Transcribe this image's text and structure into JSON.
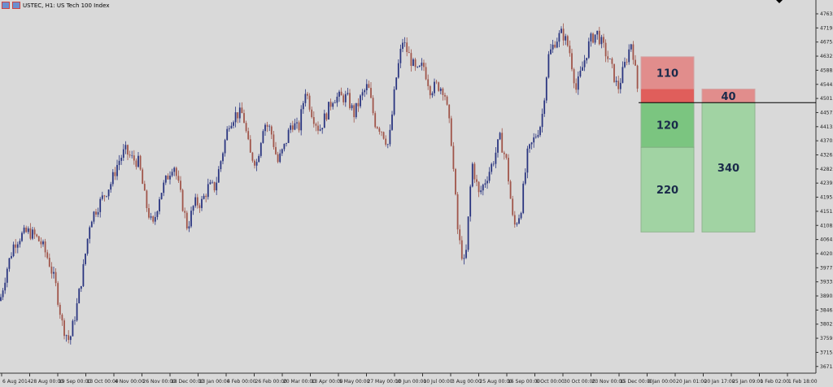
{
  "window": {
    "title": "USTEC, H1: US Tech 100 Index"
  },
  "chart_data": {
    "type": "candlestick",
    "symbol": "USTEC",
    "timeframe": "H1",
    "description": "US Tech 100 Index",
    "colors": {
      "bull": "#2a3580",
      "bear": "#a0554a",
      "background": "#d9d9d9",
      "line": "#000000"
    },
    "y_ticks": [
      "4763.00",
      "4719.35",
      "4675.70",
      "4632.05",
      "4588.40",
      "4544.75",
      "4501.10",
      "4457.45",
      "4413.80",
      "4370.15",
      "4326.50",
      "4282.85",
      "4239.20",
      "4195.55",
      "4151.90",
      "4108.25",
      "4064.60",
      "4020.95",
      "3977.30",
      "3933.65",
      "3890.00",
      "3846.35",
      "3802.70",
      "3759.05",
      "3715.40",
      "3671.75"
    ],
    "ylim": [
      3660,
      4790
    ],
    "x_ticks": [
      "6 Aug 2014",
      "28 Aug 00:00",
      "19 Sep 00:00",
      "13 Oct 00:00",
      "4 Nov 00:00",
      "26 Nov 00:00",
      "18 Dec 00:00",
      "13 Jan 00:00",
      "4 Feb 00:00",
      "26 Feb 00:00",
      "20 Mar 00:00",
      "13 Apr 00:00",
      "5 May 00:00",
      "27 May 00:00",
      "10 Jun 00:00",
      "10 Jul 00:00",
      "3 Aug 00:00",
      "25 Aug 00:00",
      "16 Sep 00:00",
      "8 Oct 00:00",
      "30 Oct 00:00",
      "23 Nov 00:00",
      "15 Dec 00:00",
      "8 Jan 00:00",
      "20 Jan 01:00",
      "20 Jan 17:00",
      "25 Jan 09:00",
      "1 Feb 02:00",
      "1 Feb 18:00"
    ],
    "close_path": [
      3875,
      3975,
      4051,
      4076,
      4089,
      4076,
      4051,
      4001,
      3925,
      3799,
      3749,
      3850,
      3975,
      4126,
      4164,
      4202,
      4240,
      4303,
      4340,
      4315,
      4303,
      4177,
      4101,
      4202,
      4252,
      4303,
      4202,
      4101,
      4177,
      4177,
      4227,
      4227,
      4328,
      4428,
      4453,
      4453,
      4328,
      4303,
      4428,
      4403,
      4303,
      4353,
      4428,
      4403,
      4529,
      4453,
      4403,
      4453,
      4504,
      4504,
      4504,
      4453,
      4504,
      4542,
      4428,
      4403,
      4353,
      4554,
      4680,
      4630,
      4579,
      4604,
      4529,
      4542,
      4529,
      4378,
      4076,
      3975,
      4303,
      4202,
      4252,
      4303,
      4378,
      4303,
      4101,
      4152,
      4328,
      4378,
      4428,
      4630,
      4680,
      4705,
      4655,
      4529,
      4604,
      4680,
      4705,
      4655,
      4604,
      4529,
      4604,
      4680,
      4504
    ],
    "horizontal_line": 4488,
    "positions": [
      {
        "risk_label": "110",
        "reward_labels": [
          "120",
          "220"
        ],
        "entry": 4488,
        "stop": 4630,
        "targets": [
          4350,
          4088
        ]
      },
      {
        "risk_label": "40",
        "reward_labels": [
          "340"
        ],
        "entry": 4488,
        "stop": 4530,
        "targets": [
          4088
        ]
      }
    ]
  }
}
